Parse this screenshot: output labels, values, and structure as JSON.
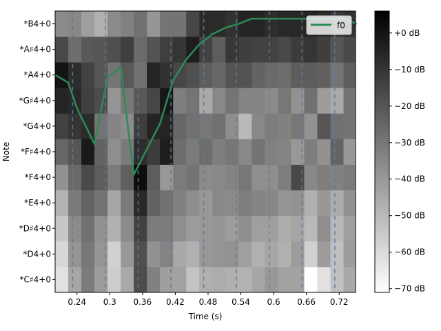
{
  "chart_data": {
    "type": "heatmap",
    "xlabel": "Time (s)",
    "ylabel": "Note",
    "x_range": [
      0.2,
      0.75
    ],
    "x_ticks": [
      0.24,
      0.3,
      0.36,
      0.42,
      0.48,
      0.54,
      0.6,
      0.66,
      0.72
    ],
    "x_tick_labels": [
      "0.24",
      "0.3",
      "0.36",
      "0.42",
      "0.48",
      "0.54",
      "0.6",
      "0.66",
      "0.72"
    ],
    "notes": [
      "*C♯4+0",
      "*D4+0",
      "*D♯4+0",
      "*E4+0",
      "*F4+0",
      "*F♯4+0",
      "*G4+0",
      "*G♯4+0",
      "*A4+0",
      "*A♯4+0",
      "*B4+0"
    ],
    "frame_times": [
      0.2,
      0.224,
      0.248,
      0.272,
      0.296,
      0.32,
      0.344,
      0.368,
      0.392,
      0.416,
      0.44,
      0.464,
      0.488,
      0.512,
      0.536,
      0.56,
      0.584,
      0.608,
      0.632,
      0.656,
      0.68,
      0.704,
      0.728,
      0.752
    ],
    "colorbar": {
      "min_db": -71,
      "max_db": 6,
      "ticks": [
        0,
        -10,
        -20,
        -30,
        -40,
        -50,
        -60,
        -70
      ],
      "tick_labels": [
        "+0 dB",
        "−10 dB",
        "−20 dB",
        "−30 dB",
        "−40 dB",
        "−50 dB",
        "−60 dB",
        "−70 dB"
      ],
      "colormap": "gray_r"
    },
    "beat_times": [
      0.232,
      0.292,
      0.352,
      0.412,
      0.472,
      0.532,
      0.592,
      0.652,
      0.712
    ],
    "beat_style": {
      "color": "#4f7fa8",
      "dash": "dashed"
    },
    "grid": false,
    "legend": {
      "position": "top-right",
      "entries": [
        {
          "label": "f0",
          "color": "#2e8b57"
        }
      ]
    },
    "series": [
      {
        "name": "f0",
        "color": "#2e8b57",
        "x": [
          0.2,
          0.224,
          0.24,
          0.272,
          0.296,
          0.32,
          0.344,
          0.368,
          0.392,
          0.416,
          0.44,
          0.464,
          0.488,
          0.512,
          0.536,
          0.56,
          0.584,
          0.608,
          0.632,
          0.656,
          0.68,
          0.704,
          0.728,
          0.752
        ],
        "y": [
          8.0,
          7.7,
          6.7,
          5.3,
          7.9,
          8.3,
          4.1,
          5.1,
          6.1,
          7.8,
          8.6,
          9.2,
          9.6,
          9.85,
          10.0,
          10.2,
          10.2,
          10.2,
          10.2,
          10.2,
          10.2,
          10.2,
          10.2,
          10.0
        ]
      }
    ],
    "values_db": [
      [
        -62,
        -44,
        -31,
        -41,
        -56,
        -45,
        -17,
        -33,
        -42,
        -43,
        -53,
        -47,
        -46,
        -47,
        -48,
        -44,
        -40,
        -43,
        -43,
        -72,
        -62,
        -52,
        -45
      ],
      [
        -59,
        -39,
        -30,
        -39,
        -57,
        -40,
        -18,
        -38,
        -34,
        -45,
        -47,
        -40,
        -39,
        -38,
        -42,
        -47,
        -44,
        -47,
        -41,
        -57,
        -41,
        -52,
        -41
      ],
      [
        -54,
        -36,
        -28,
        -38,
        -47,
        -36,
        -14,
        -31,
        -31,
        -37,
        -41,
        -40,
        -39,
        -41,
        -37,
        -42,
        -42,
        -46,
        -44,
        -50,
        -37,
        -50,
        -42
      ],
      [
        -48,
        -31,
        -24,
        -29,
        -44,
        -31,
        -6,
        -24,
        -28,
        -33,
        -37,
        -40,
        -35,
        -36,
        -32,
        -34,
        -35,
        -39,
        -38,
        -47,
        -40,
        -46,
        -38
      ],
      [
        -38,
        -26,
        -16,
        -22,
        -31,
        -23,
        2,
        -22,
        -40,
        -31,
        -29,
        -36,
        -35,
        -34,
        -30,
        -37,
        -37,
        -32,
        -16,
        -35,
        -32,
        -33,
        -31
      ],
      [
        -25,
        -20,
        -2,
        -24,
        -37,
        -31,
        -8,
        -12,
        -3,
        -27,
        -31,
        -27,
        -32,
        -30,
        -35,
        -29,
        -33,
        -34,
        -40,
        -32,
        -38,
        -24,
        -40
      ],
      [
        -14,
        -10,
        -7,
        -29,
        -34,
        -36,
        -13,
        -5,
        -5,
        -25,
        -28,
        -30,
        -28,
        -37,
        -50,
        -35,
        -32,
        -33,
        -30,
        -38,
        -20,
        -28,
        -29
      ],
      [
        -5,
        -6,
        -13,
        -17,
        -39,
        -30,
        -21,
        -15,
        -1,
        -32,
        -29,
        -45,
        -35,
        -29,
        -34,
        -34,
        -36,
        -30,
        -38,
        -28,
        -41,
        -45,
        -29
      ],
      [
        0,
        -8,
        -14,
        -20,
        -29,
        -21,
        -28,
        -5,
        -9,
        -15,
        -18,
        -22,
        -25,
        -19,
        -19,
        -24,
        -26,
        -27,
        -22,
        -22,
        -23,
        -29,
        -22
      ],
      [
        -16,
        -27,
        -21,
        -20,
        -18,
        -13,
        -26,
        -19,
        -13,
        -10,
        -3,
        -14,
        -22,
        -11,
        -13,
        -14,
        -14,
        -16,
        -12,
        -10,
        -13,
        -20,
        -16
      ],
      [
        -36,
        -35,
        -42,
        -47,
        -36,
        -33,
        -28,
        -39,
        -29,
        -29,
        -15,
        -7,
        -7,
        -9,
        -5,
        -5,
        -8,
        -6,
        -6,
        -5,
        -7,
        -11,
        -9
      ]
    ]
  }
}
